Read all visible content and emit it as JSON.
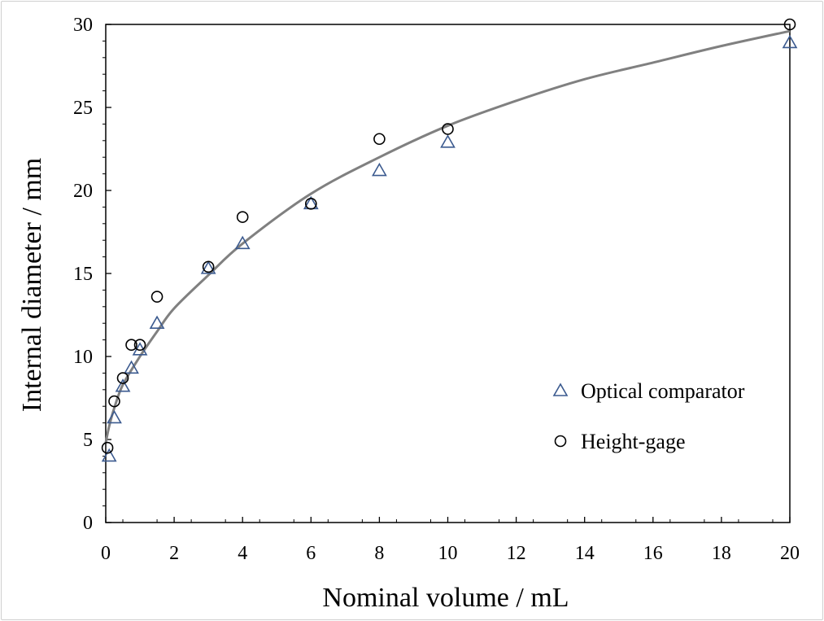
{
  "chart_data": {
    "type": "scatter",
    "title": "",
    "xlabel": "Nominal volume / mL",
    "ylabel": "Internal diameter / mm",
    "xlim": [
      0,
      20
    ],
    "ylim": [
      0,
      30
    ],
    "x_ticks": [
      "0",
      "2",
      "4",
      "6",
      "8",
      "10",
      "12",
      "14",
      "16",
      "18",
      "20"
    ],
    "y_ticks": [
      "0",
      "5",
      "10",
      "15",
      "20",
      "25",
      "30"
    ],
    "grid": false,
    "legend_position": "right-middle",
    "series": [
      {
        "name": "Optical comparator",
        "marker": "triangle",
        "color": "#3b5a8f",
        "points": [
          [
            0.1,
            4.0
          ],
          [
            0.25,
            6.3
          ],
          [
            0.5,
            8.2
          ],
          [
            0.75,
            9.3
          ],
          [
            1.0,
            10.4
          ],
          [
            1.5,
            12.0
          ],
          [
            3.0,
            15.3
          ],
          [
            4.0,
            16.8
          ],
          [
            6.0,
            19.2
          ],
          [
            8.0,
            21.2
          ],
          [
            10.0,
            22.9
          ],
          [
            20.0,
            28.9
          ]
        ]
      },
      {
        "name": "Height-gage",
        "marker": "circle",
        "color": "#000000",
        "points": [
          [
            0.05,
            4.5
          ],
          [
            0.25,
            7.3
          ],
          [
            0.5,
            8.7
          ],
          [
            0.75,
            10.7
          ],
          [
            1.0,
            10.7
          ],
          [
            1.5,
            13.6
          ],
          [
            3.0,
            15.4
          ],
          [
            4.0,
            18.4
          ],
          [
            6.0,
            19.2
          ],
          [
            8.0,
            23.1
          ],
          [
            10.0,
            23.7
          ],
          [
            20.0,
            30.0
          ]
        ]
      }
    ],
    "fit_curve": {
      "color": "#808080",
      "points": [
        [
          0.0,
          4.8
        ],
        [
          0.1,
          5.8
        ],
        [
          0.25,
          6.9
        ],
        [
          0.5,
          8.3
        ],
        [
          1.0,
          10.0
        ],
        [
          1.5,
          11.5
        ],
        [
          2.0,
          12.9
        ],
        [
          3.0,
          14.9
        ],
        [
          4.0,
          16.8
        ],
        [
          6.0,
          19.8
        ],
        [
          8.0,
          22.0
        ],
        [
          10.0,
          23.9
        ],
        [
          12.0,
          25.4
        ],
        [
          14.0,
          26.7
        ],
        [
          16.0,
          27.7
        ],
        [
          18.0,
          28.7
        ],
        [
          20.0,
          29.6
        ]
      ]
    }
  }
}
